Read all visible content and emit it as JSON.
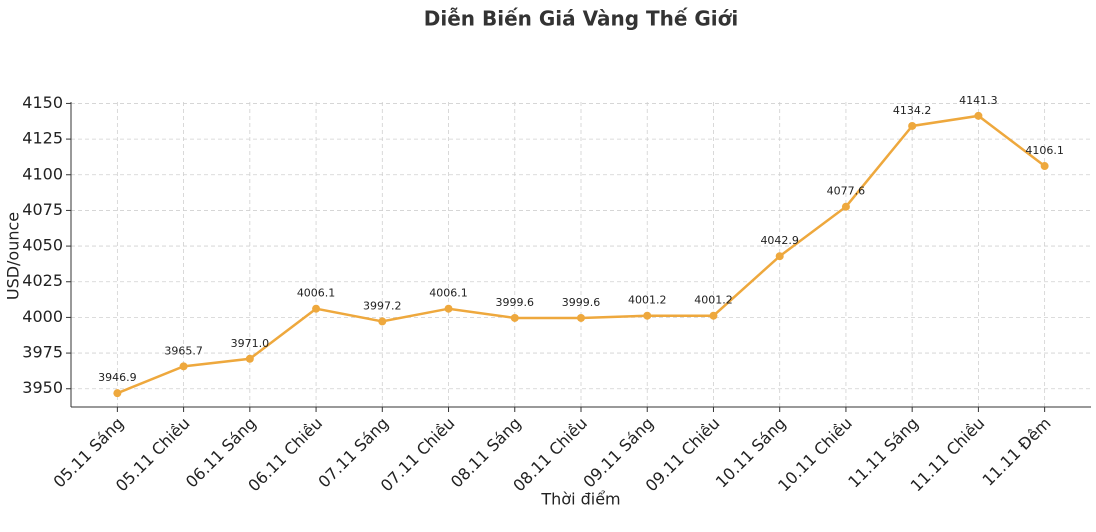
{
  "chart_data": {
    "type": "line",
    "title": "Diễn Biến Giá Vàng Thế Giới",
    "xlabel": "Thời điểm",
    "ylabel": "USD/ounce",
    "categories": [
      "05.11 Sáng",
      "05.11 Chiều",
      "06.11 Sáng",
      "06.11 Chiều",
      "07.11 Sáng",
      "07.11 Chiều",
      "08.11 Sáng",
      "08.11 Chiều",
      "09.11 Sáng",
      "09.11 Chiều",
      "10.11 Sáng",
      "10.11 Chiều",
      "11.11 Sáng",
      "11.11 Chiều",
      "11.11 Đêm"
    ],
    "values": [
      3946.9,
      3965.7,
      3971.0,
      4006.1,
      3997.2,
      4006.1,
      3999.6,
      3999.6,
      4001.2,
      4001.2,
      4042.9,
      4077.6,
      4134.2,
      4141.3,
      4106.1
    ],
    "value_labels": [
      "3946.9",
      "3965.7",
      "3971.0",
      "4006.1",
      "3997.2",
      "4006.1",
      "3999.6",
      "3999.6",
      "4001.2",
      "4001.2",
      "4042.9",
      "4077.6",
      "4134.2",
      "4141.3",
      "4106.1"
    ],
    "color": "#eea83d",
    "ylim": [
      3937.2,
      4151.0
    ],
    "yticks": [
      3950,
      3975,
      4000,
      4025,
      4050,
      4075,
      4100,
      4125,
      4150
    ],
    "grid": true
  }
}
